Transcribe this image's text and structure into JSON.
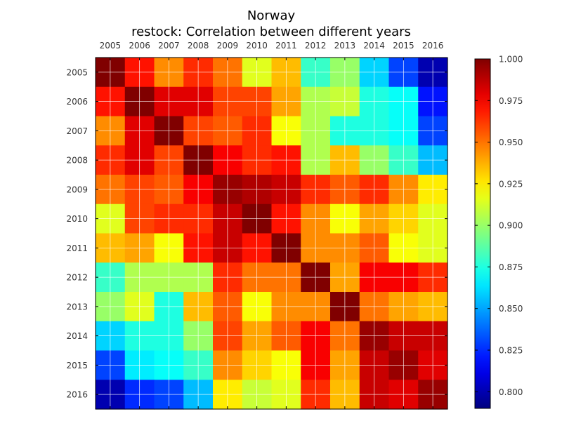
{
  "chart_data": {
    "type": "heatmap",
    "title": "Norway",
    "subtitle": "restock: Correlation between different years",
    "xlabel": "",
    "ylabel": "",
    "x_tick_position": "top",
    "categories": [
      "2005",
      "2006",
      "2007",
      "2008",
      "2009",
      "2010",
      "2011",
      "2012",
      "2013",
      "2014",
      "2015",
      "2016"
    ],
    "values": [
      [
        1.0,
        0.97,
        0.945,
        0.965,
        0.95,
        0.915,
        0.935,
        0.88,
        0.9,
        0.86,
        0.83,
        0.8
      ],
      [
        0.97,
        1.0,
        0.98,
        0.98,
        0.96,
        0.96,
        0.94,
        0.905,
        0.91,
        0.875,
        0.87,
        0.82
      ],
      [
        0.945,
        0.98,
        1.0,
        0.96,
        0.955,
        0.965,
        0.92,
        0.905,
        0.875,
        0.875,
        0.87,
        0.83
      ],
      [
        0.965,
        0.98,
        0.96,
        1.0,
        0.975,
        0.965,
        0.97,
        0.905,
        0.935,
        0.9,
        0.88,
        0.855
      ],
      [
        0.95,
        0.96,
        0.955,
        0.975,
        0.995,
        0.99,
        0.985,
        0.965,
        0.955,
        0.965,
        0.945,
        0.925
      ],
      [
        0.915,
        0.96,
        0.965,
        0.965,
        0.985,
        1.0,
        0.97,
        0.945,
        0.92,
        0.94,
        0.93,
        0.915
      ],
      [
        0.935,
        0.94,
        0.92,
        0.97,
        0.985,
        0.97,
        1.0,
        0.945,
        0.945,
        0.955,
        0.92,
        0.915
      ],
      [
        0.88,
        0.905,
        0.905,
        0.905,
        0.965,
        0.95,
        0.95,
        1.0,
        0.94,
        0.975,
        0.975,
        0.965
      ],
      [
        0.9,
        0.915,
        0.875,
        0.935,
        0.955,
        0.92,
        0.945,
        0.945,
        1.0,
        0.95,
        0.94,
        0.935
      ],
      [
        0.86,
        0.875,
        0.875,
        0.9,
        0.96,
        0.94,
        0.955,
        0.975,
        0.95,
        0.995,
        0.985,
        0.985
      ],
      [
        0.83,
        0.865,
        0.87,
        0.88,
        0.945,
        0.93,
        0.92,
        0.975,
        0.94,
        0.985,
        0.995,
        0.98
      ],
      [
        0.8,
        0.825,
        0.83,
        0.855,
        0.925,
        0.91,
        0.915,
        0.965,
        0.935,
        0.985,
        0.98,
        0.995
      ]
    ],
    "colormap": "jet",
    "colorbar": {
      "min": 0.79,
      "max": 1.0,
      "ticks": [
        0.8,
        0.825,
        0.85,
        0.875,
        0.9,
        0.925,
        0.95,
        0.975,
        1.0
      ],
      "tick_labels": [
        "0.800",
        "0.825",
        "0.850",
        "0.875",
        "0.900",
        "0.925",
        "0.950",
        "0.975",
        "1.000"
      ]
    },
    "grid": true
  }
}
